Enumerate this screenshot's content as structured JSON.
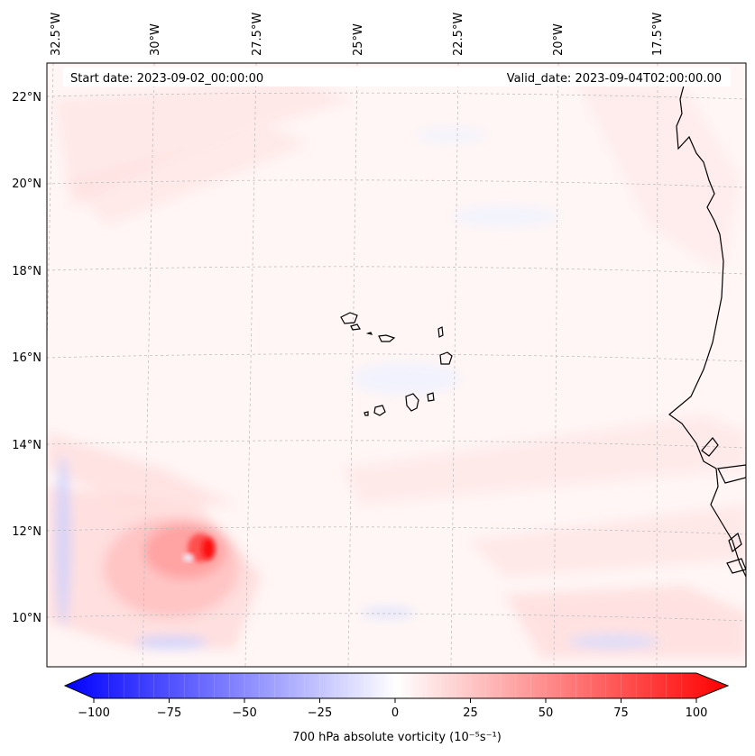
{
  "map": {
    "start_label": "Start date: 2023-09-02_00:00:00",
    "valid_label": "Valid_date: 2023-09-04T02:00:00.00",
    "lon_ticks": [
      "32.5°W",
      "30°W",
      "27.5°W",
      "25°W",
      "22.5°W",
      "20°W",
      "17.5°W"
    ],
    "lat_ticks": [
      "22°N",
      "20°N",
      "18°N",
      "16°N",
      "14°N",
      "12°N",
      "10°N"
    ],
    "vortex": {
      "lon": -29.5,
      "lat": 11.6,
      "peak_vorticity": 100
    },
    "colors": {
      "negative": "#0000ff",
      "zero": "#ffffff",
      "positive": "#ff0000"
    }
  },
  "colorbar": {
    "label": "700 hPa absolute vorticity (10⁻⁵s⁻¹)",
    "min": -100,
    "max": 100,
    "ticks": [
      "−100",
      "−75",
      "−50",
      "−25",
      "0",
      "25",
      "50",
      "75",
      "100"
    ]
  }
}
